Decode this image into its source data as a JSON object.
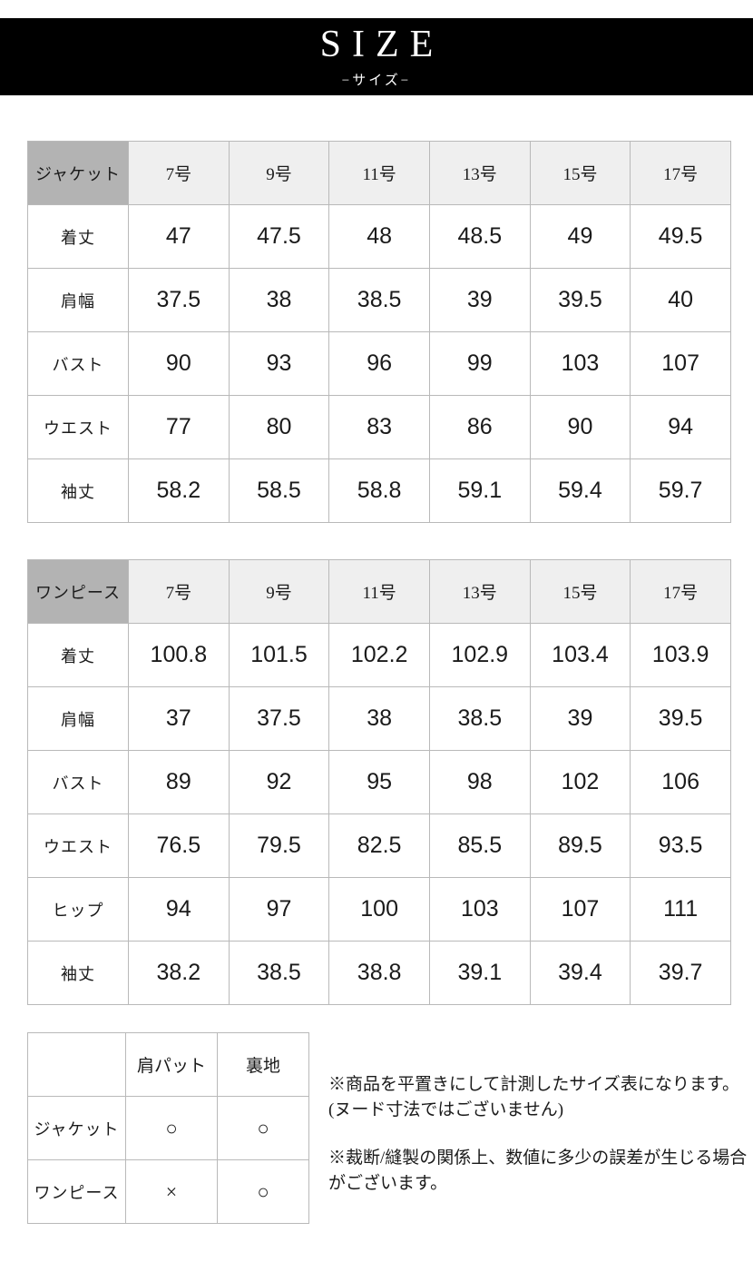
{
  "header": {
    "title": "SIZE",
    "subtitle": "−サイズ−"
  },
  "tables": [
    {
      "id": "jacket",
      "corner_label": "ジャケット",
      "size_headers": [
        "7号",
        "9号",
        "11号",
        "13号",
        "15号",
        "17号"
      ],
      "rows": [
        {
          "label": "着丈",
          "values": [
            "47",
            "47.5",
            "48",
            "48.5",
            "49",
            "49.5"
          ]
        },
        {
          "label": "肩幅",
          "values": [
            "37.5",
            "38",
            "38.5",
            "39",
            "39.5",
            "40"
          ]
        },
        {
          "label": "バスト",
          "values": [
            "90",
            "93",
            "96",
            "99",
            "103",
            "107"
          ]
        },
        {
          "label": "ウエスト",
          "values": [
            "77",
            "80",
            "83",
            "86",
            "90",
            "94"
          ]
        },
        {
          "label": "袖丈",
          "values": [
            "58.2",
            "58.5",
            "58.8",
            "59.1",
            "59.4",
            "59.7"
          ]
        }
      ]
    },
    {
      "id": "onepiece",
      "corner_label": "ワンピース",
      "size_headers": [
        "7号",
        "9号",
        "11号",
        "13号",
        "15号",
        "17号"
      ],
      "rows": [
        {
          "label": "着丈",
          "values": [
            "100.8",
            "101.5",
            "102.2",
            "102.9",
            "103.4",
            "103.9"
          ]
        },
        {
          "label": "肩幅",
          "values": [
            "37",
            "37.5",
            "38",
            "38.5",
            "39",
            "39.5"
          ]
        },
        {
          "label": "バスト",
          "values": [
            "89",
            "92",
            "95",
            "98",
            "102",
            "106"
          ]
        },
        {
          "label": "ウエスト",
          "values": [
            "76.5",
            "79.5",
            "82.5",
            "85.5",
            "89.5",
            "93.5"
          ]
        },
        {
          "label": "ヒップ",
          "values": [
            "94",
            "97",
            "100",
            "103",
            "107",
            "111"
          ]
        },
        {
          "label": "袖丈",
          "values": [
            "38.2",
            "38.5",
            "38.8",
            "39.1",
            "39.4",
            "39.7"
          ]
        }
      ]
    }
  ],
  "spec_table": {
    "corner_label": "",
    "columns": [
      "肩パット",
      "裏地"
    ],
    "rows": [
      {
        "label": "ジャケット",
        "values": [
          "○",
          "○"
        ]
      },
      {
        "label": "ワンピース",
        "values": [
          "×",
          "○"
        ]
      }
    ]
  },
  "notes": [
    {
      "lines": [
        "※商品を平置きにして計測したサイズ表になります。",
        "(ヌード寸法ではございません)"
      ]
    },
    {
      "lines": [
        "※裁断/縫製の関係上、数値に多少の誤差が生じる場合がございます。"
      ]
    }
  ],
  "colors": {
    "banner_bg": "#000000",
    "banner_text": "#ffffff",
    "corner_header_bg": "#b3b3b3",
    "size_header_bg": "#efefef",
    "cell_border": "#b9b9b9",
    "outer_border": "#8f8f8f"
  }
}
